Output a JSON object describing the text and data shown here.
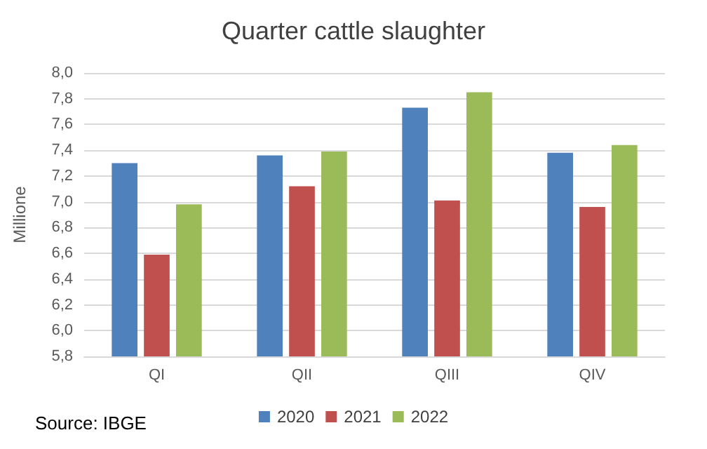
{
  "chart_data": {
    "type": "bar",
    "title": "Quarter cattle slaughter",
    "ylabel": "Millione",
    "categories": [
      "QI",
      "QII",
      "QIII",
      "QIV"
    ],
    "series": [
      {
        "name": "2020",
        "color": "#4f81bd",
        "values": [
          7.3,
          7.36,
          7.73,
          7.38
        ]
      },
      {
        "name": "2021",
        "color": "#c0504d",
        "values": [
          6.59,
          7.12,
          7.01,
          6.96
        ]
      },
      {
        "name": "2022",
        "color": "#9bbb59",
        "values": [
          6.98,
          7.39,
          7.85,
          7.44
        ]
      }
    ],
    "ylim": [
      5.8,
      8.0
    ],
    "yticks": [
      {
        "value": 5.8,
        "label": "5,8"
      },
      {
        "value": 6.0,
        "label": "6,0"
      },
      {
        "value": 6.2,
        "label": "6,2"
      },
      {
        "value": 6.4,
        "label": "6,4"
      },
      {
        "value": 6.6,
        "label": "6,6"
      },
      {
        "value": 6.8,
        "label": "6,8"
      },
      {
        "value": 7.0,
        "label": "7,0"
      },
      {
        "value": 7.2,
        "label": "7,2"
      },
      {
        "value": 7.4,
        "label": "7,4"
      },
      {
        "value": 7.6,
        "label": "7,6"
      },
      {
        "value": 7.8,
        "label": "7,8"
      },
      {
        "value": 8.0,
        "label": "8,0"
      }
    ],
    "grid": "y",
    "legend": "bottom",
    "annotations": [
      "Source: IBGE"
    ]
  }
}
